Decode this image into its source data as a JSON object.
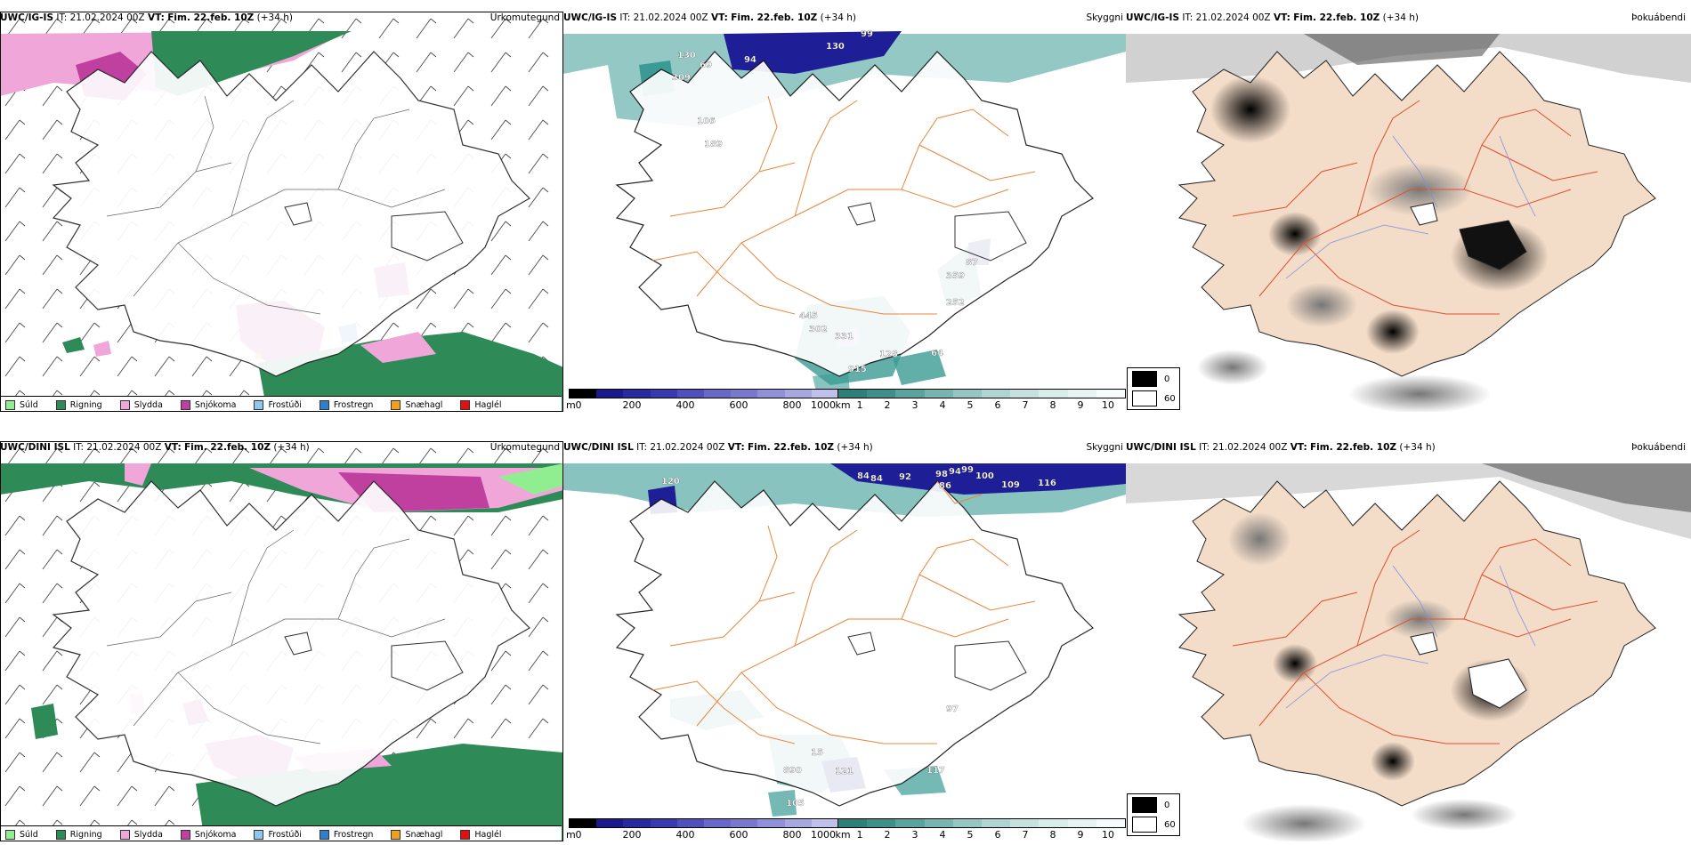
{
  "rows": [
    {
      "model": "UWC/IG-IS",
      "it_label": "IT:",
      "it_value": "21.02.2024 00Z",
      "vt_label": "VT:",
      "vt_value": "Fim. 22.feb. 10Z",
      "lead": "(+34 h)",
      "precip_title": "Úrkomutegund",
      "vis_title": "Skyggni",
      "fog_title": "Þokuábendi",
      "height_labels": [
        "130",
        "69",
        "309",
        "106",
        "189",
        "94",
        "130",
        "99",
        "445",
        "302",
        "331",
        "128",
        "915",
        "359",
        "87",
        "252",
        "64"
      ]
    },
    {
      "model": "UWC/DINI ISL",
      "it_label": "IT:",
      "it_value": "21.02.2024 00Z",
      "vt_label": "VT:",
      "vt_value": "Fim. 22.feb. 10Z",
      "lead": "(+34 h)",
      "precip_title": "Úrkomutegund",
      "vis_title": "Skyggni",
      "fog_title": "Þokuábendi",
      "height_labels": [
        "120",
        "84",
        "84",
        "92",
        "98",
        "94",
        "99",
        "100",
        "86",
        "109",
        "116",
        "15",
        "890",
        "121",
        "105",
        "117",
        "97"
      ]
    }
  ],
  "precip_legend": [
    {
      "label": "Súld",
      "color": "#90ee90"
    },
    {
      "label": "Rigning",
      "color": "#2e8b57"
    },
    {
      "label": "Slydda",
      "color": "#f0a6d8"
    },
    {
      "label": "Snjókoma",
      "color": "#c040a0"
    },
    {
      "label": "Frostúði",
      "color": "#8ec8ee"
    },
    {
      "label": "Frostregn",
      "color": "#2f7fd0"
    },
    {
      "label": "Snæhagl",
      "color": "#f0a020"
    },
    {
      "label": "Haglél",
      "color": "#e01010"
    }
  ],
  "vis_colorbar": {
    "m_unit": "m",
    "m_ticks": [
      "0",
      "200",
      "400",
      "600",
      "800",
      "1000"
    ],
    "km_unit": "km",
    "km_ticks": [
      "1",
      "2",
      "3",
      "4",
      "5",
      "6",
      "7",
      "8",
      "9",
      "10"
    ],
    "m_colors": [
      "#000000",
      "#1a1a8a",
      "#2a2aa0",
      "#3a3ab0",
      "#5050bc",
      "#6868c8",
      "#7878cc",
      "#9090d8",
      "#a8a8e0",
      "#c0c0ec"
    ],
    "km_colors": [
      "#2e7f7a",
      "#3e8f8a",
      "#5aa39e",
      "#78b5b0",
      "#94c6c2",
      "#aed5d2",
      "#c5e2e0",
      "#d8ecea",
      "#e8f4f3",
      "#f6fbfb"
    ]
  },
  "fog_legend": [
    {
      "label": "0",
      "color": "#000000"
    },
    {
      "label": "60",
      "color": "#ffffff"
    }
  ],
  "colors": {
    "land_fog": "#f3dcc8",
    "roads_orange": "#e8863a",
    "roads_red": "#e05030",
    "rivers": "#8090e0",
    "sea_teal": "#3b9b94",
    "sea_navy": "#1e1e96"
  }
}
